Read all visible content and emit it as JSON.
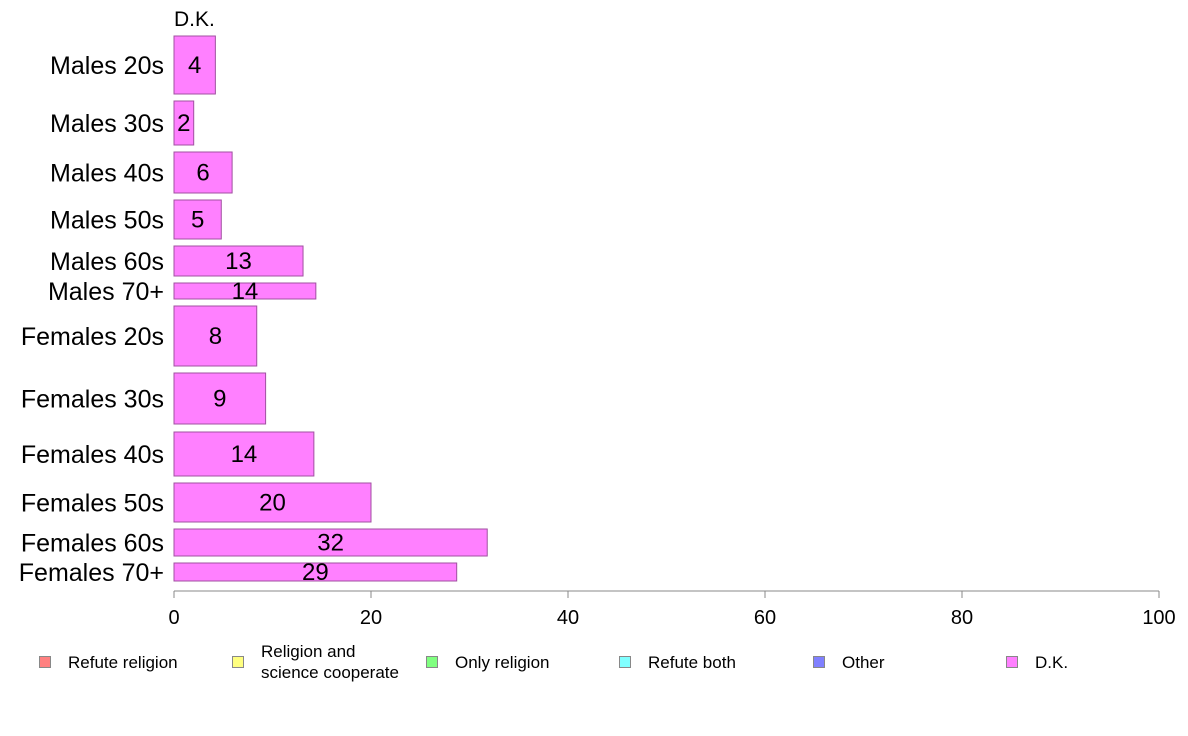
{
  "chart_data": {
    "type": "bar",
    "orientation": "horizontal",
    "stacked": true,
    "title": "D.K.",
    "categories": [
      "Males 20s",
      "Males 30s",
      "Males 40s",
      "Males 50s",
      "Males 60s",
      "Males 70+",
      "Females 20s",
      "Females 30s",
      "Females 40s",
      "Females 50s",
      "Females 60s",
      "Females 70+"
    ],
    "series": [
      {
        "name": "D.K.",
        "color": "#ff80ff",
        "values": [
          4.2,
          2.0,
          5.9,
          4.8,
          13.1,
          14.4,
          8.4,
          9.3,
          14.2,
          20.0,
          31.8,
          28.7
        ],
        "labels": [
          "4",
          "2",
          "6",
          "5",
          "13",
          "14",
          "8",
          "9",
          "14",
          "20",
          "32",
          "29"
        ]
      }
    ],
    "xlim": [
      0,
      100
    ],
    "xticks": [
      "0",
      "20",
      "40",
      "60",
      "80",
      "100"
    ],
    "grid": false,
    "legend": {
      "position": "bottom",
      "items": [
        {
          "label": "Refute religion",
          "color": "#ff8080"
        },
        {
          "label": "Religion and\nscience cooperate",
          "color": "#ffff80"
        },
        {
          "label": "Only religion",
          "color": "#80ff80"
        },
        {
          "label": "Refute both",
          "color": "#80ffff"
        },
        {
          "label": "Other",
          "color": "#8080ff"
        },
        {
          "label": "D.K.",
          "color": "#ff80ff"
        }
      ]
    }
  }
}
